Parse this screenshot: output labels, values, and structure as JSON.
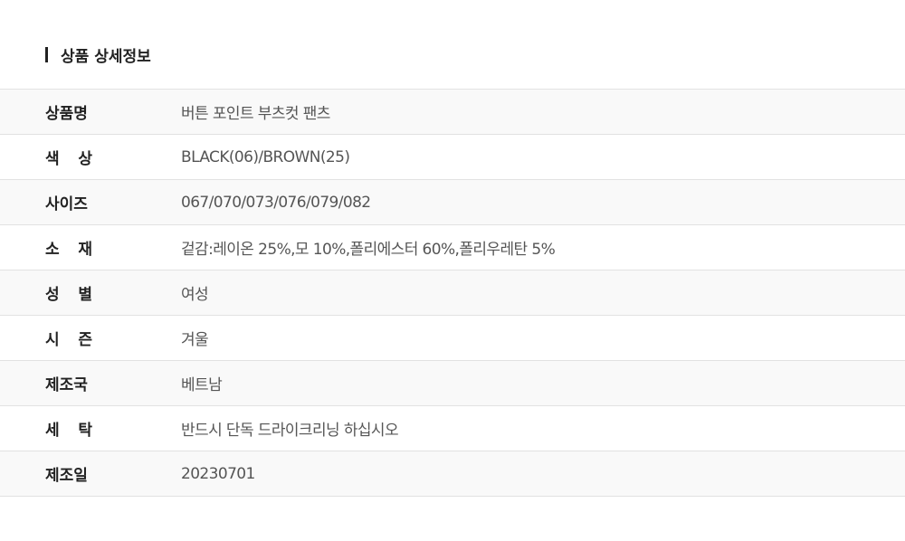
{
  "section": {
    "title": "상품 상세정보"
  },
  "rows": [
    {
      "label": "상품명",
      "value": "버튼 포인트 부츠컷 팬츠"
    },
    {
      "label": "색 상",
      "value": "BLACK(06)/BROWN(25)"
    },
    {
      "label": "사이즈",
      "value": "067/070/073/076/079/082"
    },
    {
      "label": "소 재",
      "value": "겉감:레이온 25%,모 10%,폴리에스터 60%,폴리우레탄 5%"
    },
    {
      "label": "성 별",
      "value": "여성"
    },
    {
      "label": "시 즌",
      "value": "겨울"
    },
    {
      "label": "제조국",
      "value": "베트남"
    },
    {
      "label": "세 탁",
      "value": "반드시 단독 드라이크리닝 하십시오"
    },
    {
      "label": "제조일",
      "value": "20230701"
    }
  ]
}
